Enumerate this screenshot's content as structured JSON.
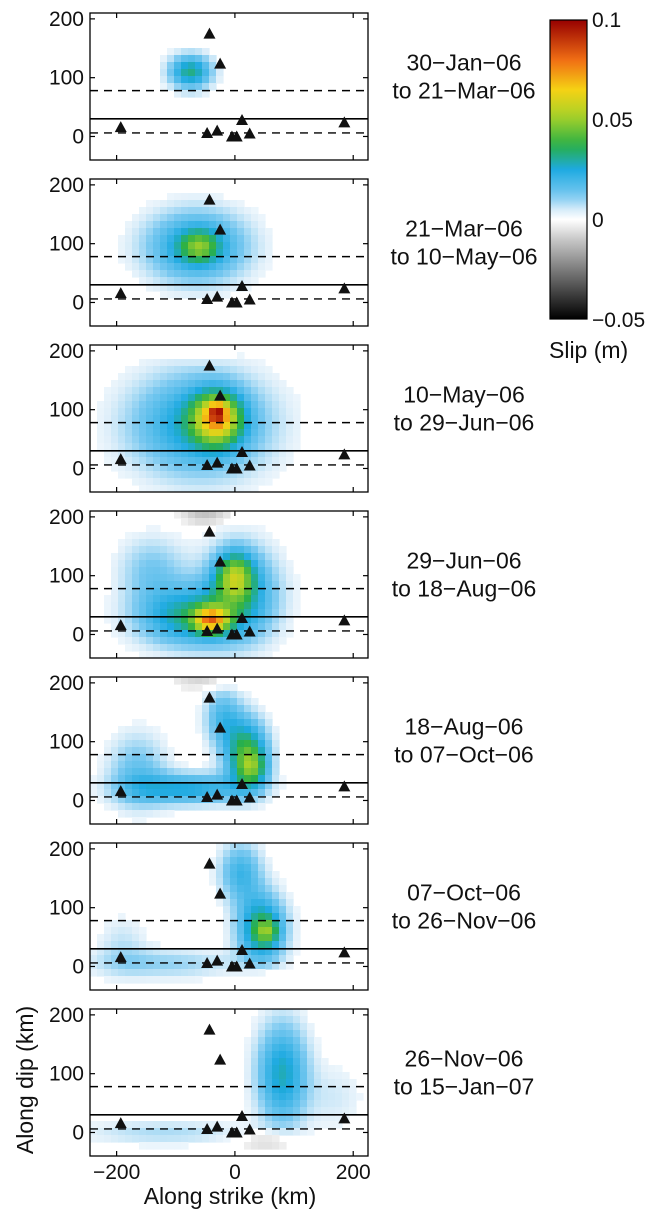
{
  "chart_data": {
    "type": "heatmap",
    "xlabel": "Along strike (km)",
    "ylabel": "Along dip (km)",
    "xlim": [
      -245,
      225
    ],
    "ylim": [
      -40,
      210
    ],
    "x_ticks": [
      -200,
      0,
      200
    ],
    "y_ticks": [
      0,
      100,
      200
    ],
    "colorbar": {
      "label": "Slip (m)",
      "range": [
        -0.05,
        0.1
      ],
      "ticks": [
        0.1,
        0.05,
        0,
        -0.05
      ],
      "tick_labels": [
        "0.1",
        "0.05",
        "0",
        "−0.05"
      ]
    },
    "reference_lines": {
      "solid_y": 30,
      "dashed_y": [
        78,
        6
      ]
    },
    "stations": [
      {
        "x": -193,
        "y": 16
      },
      {
        "x": -43,
        "y": 175
      },
      {
        "x": -25,
        "y": 124
      },
      {
        "x": -47,
        "y": 6
      },
      {
        "x": -30,
        "y": 10
      },
      {
        "x": -5,
        "y": 0
      },
      {
        "x": 3,
        "y": 0
      },
      {
        "x": 12,
        "y": 28
      },
      {
        "x": 25,
        "y": 5
      },
      {
        "x": 185,
        "y": 24
      }
    ],
    "panels": [
      {
        "line1": "30−Jan−06",
        "line2": "to 21−Mar−06",
        "blobs": [
          {
            "x": -75,
            "y": 110,
            "sx": 25,
            "sy": 20,
            "amp": 0.032
          }
        ]
      },
      {
        "line1": "21−Mar−06",
        "line2": "to 10−May−06",
        "blobs": [
          {
            "x": -65,
            "y": 95,
            "sx": 60,
            "sy": 42,
            "amp": 0.028
          },
          {
            "x": -60,
            "y": 95,
            "sx": 22,
            "sy": 18,
            "amp": 0.022
          }
        ]
      },
      {
        "line1": "10−May−06",
        "line2": "to 29−Jun−06",
        "blobs": [
          {
            "x": -60,
            "y": 75,
            "sx": 80,
            "sy": 60,
            "amp": 0.028
          },
          {
            "x": -30,
            "y": 85,
            "sx": 28,
            "sy": 30,
            "amp": 0.05
          },
          {
            "x": -30,
            "y": 95,
            "sx": 10,
            "sy": 10,
            "amp": 0.03
          },
          {
            "x": -60,
            "y": 195,
            "sx": 30,
            "sy": 8,
            "amp": -0.006
          }
        ]
      },
      {
        "line1": "29−Jun−06",
        "line2": "to 18−Aug−06",
        "blobs": [
          {
            "x": -80,
            "y": 30,
            "sx": 60,
            "sy": 35,
            "amp": 0.03
          },
          {
            "x": -40,
            "y": 25,
            "sx": 20,
            "sy": 15,
            "amp": 0.05
          },
          {
            "x": 0,
            "y": 100,
            "sx": 22,
            "sy": 28,
            "amp": 0.035
          },
          {
            "x": 10,
            "y": 70,
            "sx": 45,
            "sy": 55,
            "amp": 0.025
          },
          {
            "x": -140,
            "y": 110,
            "sx": 40,
            "sy": 40,
            "amp": 0.012
          },
          {
            "x": -50,
            "y": 200,
            "sx": 30,
            "sy": 7,
            "amp": -0.014
          }
        ]
      },
      {
        "line1": "18−Aug−06",
        "line2": "to 07−Oct−06",
        "blobs": [
          {
            "x": 20,
            "y": 80,
            "sx": 25,
            "sy": 40,
            "amp": 0.038
          },
          {
            "x": 30,
            "y": 55,
            "sx": 18,
            "sy": 20,
            "amp": 0.02
          },
          {
            "x": -80,
            "y": 20,
            "sx": 70,
            "sy": 18,
            "amp": 0.025
          },
          {
            "x": -165,
            "y": 50,
            "sx": 35,
            "sy": 45,
            "amp": 0.014
          },
          {
            "x": -20,
            "y": 140,
            "sx": 22,
            "sy": 35,
            "amp": 0.018
          },
          {
            "x": -55,
            "y": 200,
            "sx": 35,
            "sy": 6,
            "amp": -0.01
          }
        ]
      },
      {
        "line1": "07−Oct−06",
        "line2": "to 26−Nov−06",
        "blobs": [
          {
            "x": 45,
            "y": 65,
            "sx": 28,
            "sy": 40,
            "amp": 0.035
          },
          {
            "x": 55,
            "y": 60,
            "sx": 14,
            "sy": 14,
            "amp": 0.018
          },
          {
            "x": 10,
            "y": 160,
            "sx": 25,
            "sy": 35,
            "amp": 0.02
          },
          {
            "x": -120,
            "y": 5,
            "sx": 90,
            "sy": 18,
            "amp": 0.01
          },
          {
            "x": -190,
            "y": 40,
            "sx": 30,
            "sy": 35,
            "amp": 0.006
          },
          {
            "x": 50,
            "y": -20,
            "sx": 30,
            "sy": 12,
            "amp": -0.006
          }
        ]
      },
      {
        "line1": "26−Nov−06",
        "line2": "to 15−Jan−07",
        "blobs": [
          {
            "x": 80,
            "y": 100,
            "sx": 30,
            "sy": 60,
            "amp": 0.028
          },
          {
            "x": -120,
            "y": 0,
            "sx": 100,
            "sy": 15,
            "amp": 0.008
          },
          {
            "x": 60,
            "y": -15,
            "sx": 35,
            "sy": 12,
            "amp": -0.01
          },
          {
            "x": 170,
            "y": 60,
            "sx": 35,
            "sy": 40,
            "amp": 0.005
          }
        ]
      }
    ]
  }
}
